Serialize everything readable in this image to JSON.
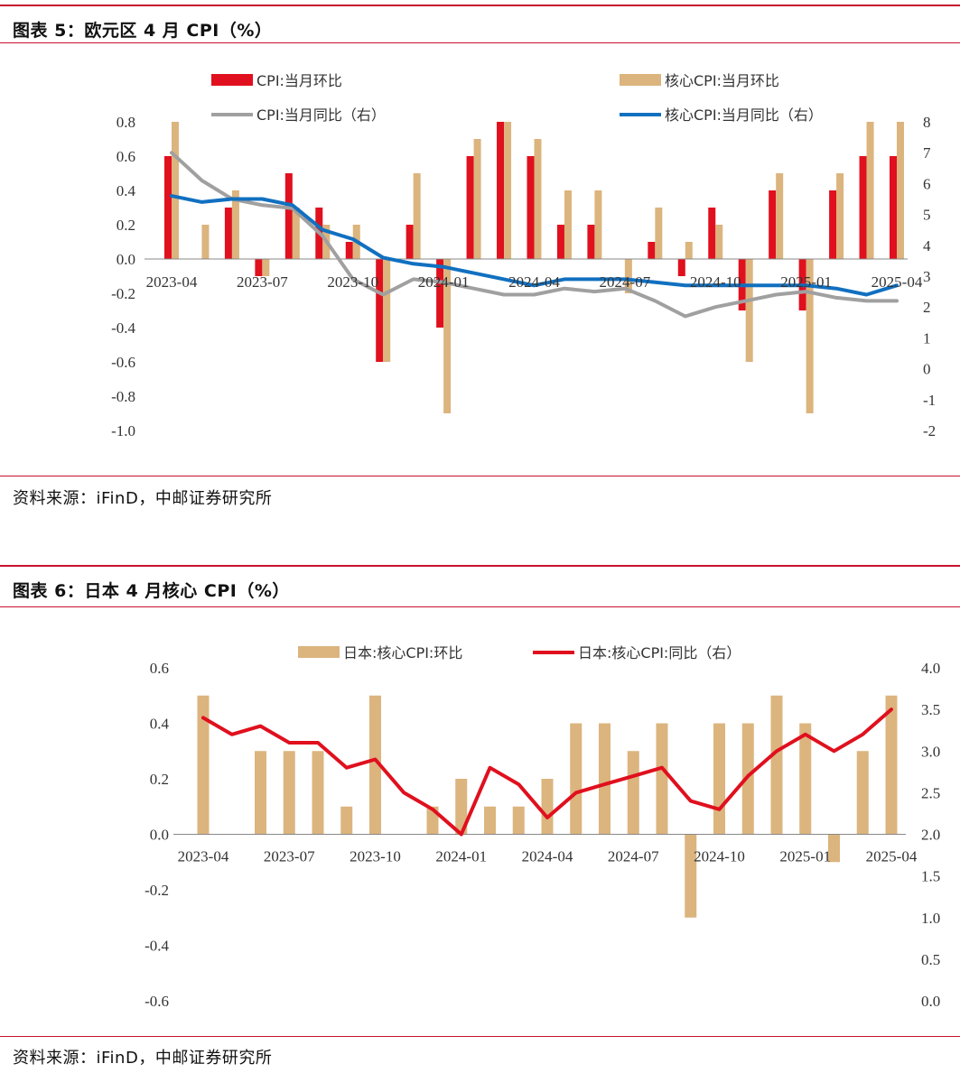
{
  "figure1": {
    "title": "图表 5：欧元区 4 月 CPI（%）",
    "source": "资料来源：iFinD，中邮证券研究所"
  },
  "figure2": {
    "title": "图表 6：日本 4 月核心 CPI（%）",
    "source": "资料来源：iFinD，中邮证券研究所"
  },
  "colors": {
    "accent_rule": "#c8102e"
  },
  "chart_data": [
    {
      "type": "bar",
      "categories": [
        "2023-04",
        "2023-05",
        "2023-06",
        "2023-07",
        "2023-08",
        "2023-09",
        "2023-10",
        "2023-11",
        "2023-12",
        "2024-01",
        "2024-02",
        "2024-03",
        "2024-04",
        "2024-05",
        "2024-06",
        "2024-07",
        "2024-08",
        "2024-09",
        "2024-10",
        "2024-11",
        "2024-12",
        "2025-01",
        "2025-02",
        "2025-03",
        "2025-04"
      ],
      "x_tick_labels": [
        "2023-04",
        "2023-07",
        "2023-10",
        "2024-01",
        "2024-04",
        "2024-07",
        "2024-10",
        "2025-01",
        "2025-04"
      ],
      "left_axis": {
        "ylim": [
          -1.0,
          0.8
        ],
        "ticks": [
          "0.8",
          "0.6",
          "0.4",
          "0.2",
          "0.0",
          "-0.2",
          "-0.4",
          "-0.6",
          "-0.8",
          "-1.0"
        ]
      },
      "right_axis": {
        "ylim": [
          -2,
          8
        ],
        "ticks": [
          "8",
          "7",
          "6",
          "5",
          "4",
          "3",
          "2",
          "1",
          "0",
          "-1",
          "-2"
        ]
      },
      "legend_position": "top",
      "series": [
        {
          "name": "CPI:当月环比",
          "type": "bar",
          "axis": "left",
          "color": "#e0101e",
          "values": [
            0.6,
            0.0,
            0.3,
            -0.1,
            0.5,
            0.3,
            0.1,
            -0.6,
            0.2,
            -0.4,
            0.6,
            0.8,
            0.6,
            0.2,
            0.2,
            0.0,
            0.1,
            -0.1,
            0.3,
            -0.3,
            0.4,
            -0.3,
            0.4,
            0.6,
            0.6
          ]
        },
        {
          "name": "核心CPI:当月环比",
          "type": "bar",
          "axis": "left",
          "color": "#dcb47e",
          "values": [
            0.8,
            0.2,
            0.4,
            -0.1,
            0.3,
            0.2,
            0.2,
            -0.6,
            0.5,
            -0.9,
            0.7,
            0.8,
            0.7,
            0.4,
            0.4,
            -0.2,
            0.3,
            0.1,
            0.2,
            -0.6,
            0.5,
            -0.9,
            0.5,
            0.8,
            0.8
          ]
        },
        {
          "name": "CPI:当月同比（右）",
          "type": "line",
          "axis": "right",
          "color": "#a0a0a0",
          "values": [
            7.0,
            6.1,
            5.5,
            5.3,
            5.2,
            4.3,
            2.9,
            2.4,
            2.9,
            2.8,
            2.6,
            2.4,
            2.4,
            2.6,
            2.5,
            2.6,
            2.2,
            1.7,
            2.0,
            2.2,
            2.4,
            2.5,
            2.3,
            2.2,
            2.2
          ]
        },
        {
          "name": "核心CPI:当月同比（右）",
          "type": "line",
          "axis": "right",
          "color": "#1170c0",
          "values": [
            5.6,
            5.4,
            5.5,
            5.5,
            5.3,
            4.5,
            4.2,
            3.6,
            3.4,
            3.3,
            3.1,
            2.9,
            2.7,
            2.9,
            2.9,
            2.9,
            2.8,
            2.7,
            2.7,
            2.7,
            2.7,
            2.7,
            2.6,
            2.4,
            2.7
          ]
        }
      ]
    },
    {
      "type": "bar",
      "categories": [
        "2023-04",
        "2023-05",
        "2023-06",
        "2023-07",
        "2023-08",
        "2023-09",
        "2023-10",
        "2023-11",
        "2023-12",
        "2024-01",
        "2024-02",
        "2024-03",
        "2024-04",
        "2024-05",
        "2024-06",
        "2024-07",
        "2024-08",
        "2024-09",
        "2024-10",
        "2024-11",
        "2024-12",
        "2025-01",
        "2025-02",
        "2025-03",
        "2025-04"
      ],
      "x_tick_labels": [
        "2023-04",
        "2023-07",
        "2023-10",
        "2024-01",
        "2024-04",
        "2024-07",
        "2024-10",
        "2025-01",
        "2025-04"
      ],
      "left_axis": {
        "ylim": [
          -0.6,
          0.6
        ],
        "ticks": [
          "0.6",
          "0.4",
          "0.2",
          "0.0",
          "-0.2",
          "-0.4",
          "-0.6"
        ]
      },
      "right_axis": {
        "ylim": [
          0.0,
          4.0
        ],
        "ticks": [
          "4.0",
          "3.5",
          "3.0",
          "2.5",
          "2.0",
          "1.5",
          "1.0",
          "0.5",
          "0.0"
        ]
      },
      "legend_position": "top",
      "series": [
        {
          "name": "日本:核心CPI:环比",
          "type": "bar",
          "axis": "left",
          "color": "#dcb47e",
          "values": [
            0.5,
            0.0,
            0.3,
            0.3,
            0.3,
            0.1,
            0.5,
            0.0,
            0.1,
            0.2,
            0.1,
            0.1,
            0.2,
            0.4,
            0.4,
            0.3,
            0.4,
            -0.3,
            0.4,
            0.4,
            0.5,
            0.4,
            -0.1,
            0.3,
            0.5
          ]
        },
        {
          "name": "日本:核心CPI:同比（右）",
          "type": "line",
          "axis": "right",
          "color": "#e0101e",
          "values": [
            3.4,
            3.2,
            3.3,
            3.1,
            3.1,
            2.8,
            2.9,
            2.5,
            2.3,
            2.0,
            2.8,
            2.6,
            2.2,
            2.5,
            2.6,
            2.7,
            2.8,
            2.4,
            2.3,
            2.7,
            3.0,
            3.2,
            3.0,
            3.2,
            3.5
          ]
        }
      ]
    }
  ]
}
